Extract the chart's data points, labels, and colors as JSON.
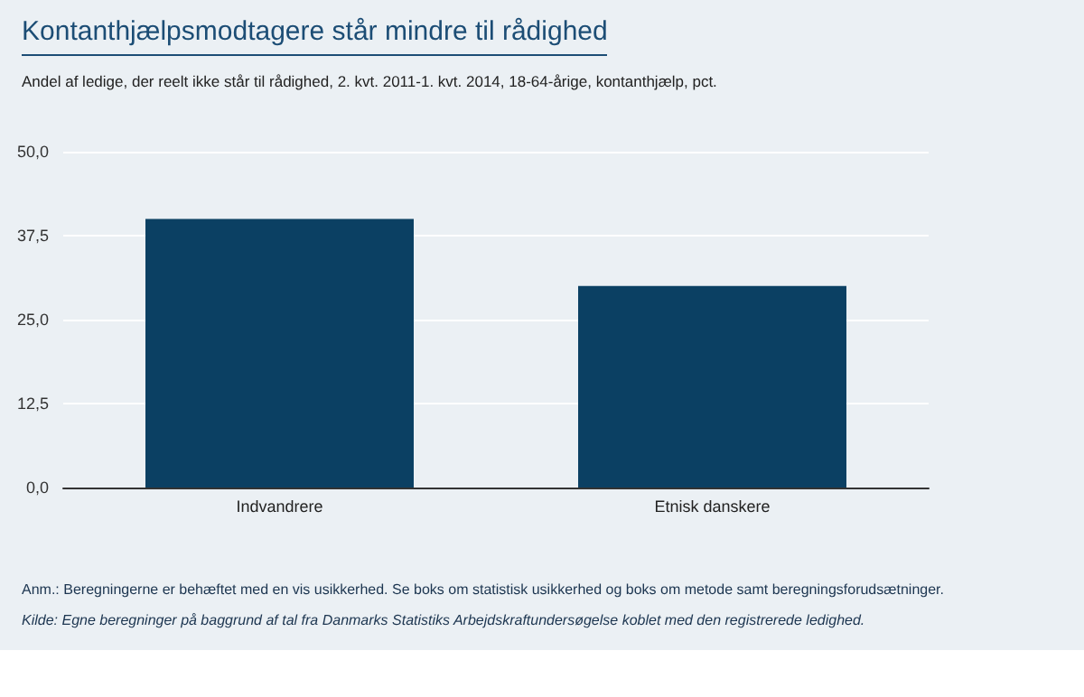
{
  "chart_data": {
    "type": "bar",
    "title": "Kontanthjælpsmodtagere står mindre til rådighed",
    "subtitle": "Andel af ledige, der reelt ikke står til rådighed, 2. kvt. 2011-1. kvt. 2014, 18-64-årige, kontanthjælp, pct.",
    "categories": [
      "Indvandrere",
      "Etnisk danskere"
    ],
    "values": [
      40,
      30
    ],
    "color": "#0b4063",
    "ylim": [
      0,
      50
    ],
    "yticks": [
      {
        "value": 0,
        "label": "0,0"
      },
      {
        "value": 12.5,
        "label": "12,5"
      },
      {
        "value": 25,
        "label": "25,0"
      },
      {
        "value": 37.5,
        "label": "37,5"
      },
      {
        "value": 50,
        "label": "50,0"
      }
    ],
    "grid": "y",
    "annotations": [
      "Anm.: Beregningerne er behæftet med en vis usikkerhed. Se boks om statistisk usikkerhed og boks om metode samt beregningsforudsætninger.",
      "Kilde: Egne beregninger på baggrund af tal fra Danmarks Statistiks Arbejdskraftundersøgelse koblet med den registrerede ledighed."
    ]
  }
}
